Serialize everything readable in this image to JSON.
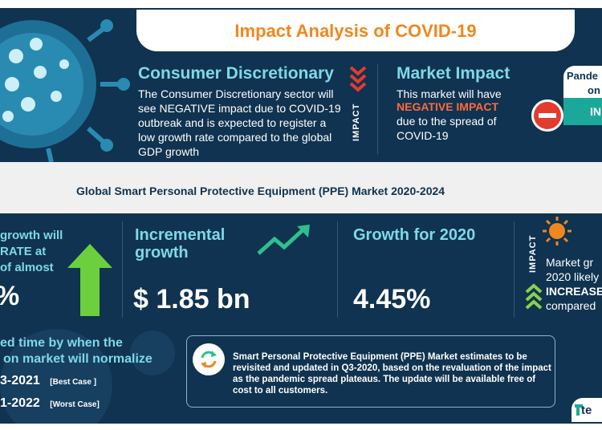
{
  "title": "Impact Analysis of COVID-19",
  "consumer": {
    "heading": "Consumer Discretionary",
    "body": "The Consumer Discretionary sector will see NEGATIVE impact due to COVID-19 outbreak and is expected to register a low growth rate compared to the global GDP growth",
    "impact_label": "IMPACT"
  },
  "market_impact": {
    "heading": "Market Impact",
    "line1": "This market will have",
    "highlight": "NEGATIVE IMPACT",
    "line2": "due to the spread of COVID-19"
  },
  "pandemic_box": {
    "line1": "Pande",
    "line2": "on",
    "tag": "IN"
  },
  "subtitle": "Global Smart Personal Protective Equipment (PPE) Market 2020-2024",
  "growth_col": {
    "line1": "growth will",
    "line2": "RATE at",
    "line3": "of almost",
    "value": "%"
  },
  "incremental": {
    "heading_line1": "Incremental",
    "heading_line2": "growth",
    "value": "$ 1.85 bn"
  },
  "growth2020": {
    "heading": "Growth for 2020",
    "value": "4.45%"
  },
  "right_col": {
    "impact_label": "IMPACT",
    "line1": "Market gr",
    "line2": "2020 likely",
    "line3": "INCREASE",
    "line4": "compared"
  },
  "normalize": {
    "line1": "ed time by when the",
    "line2": "on market will normalize",
    "best_year": "3-2021",
    "best_label": "[Best Case ]",
    "worst_year": "1-2022",
    "worst_label": "[Worst Case]"
  },
  "update_note": "Smart Personal Protective Equipment (PPE) Market estimates to be revisited and updated in Q3-2020, based on the revaluation of the impact as the pandemic spread plateaus. The update will be available free of cost to all customers.",
  "logo": "te",
  "colors": {
    "navy": "#0f3350",
    "orange": "#f0871e",
    "teal": "#7fd8e8",
    "green": "#2fbf8f",
    "red": "#e33b2e"
  }
}
